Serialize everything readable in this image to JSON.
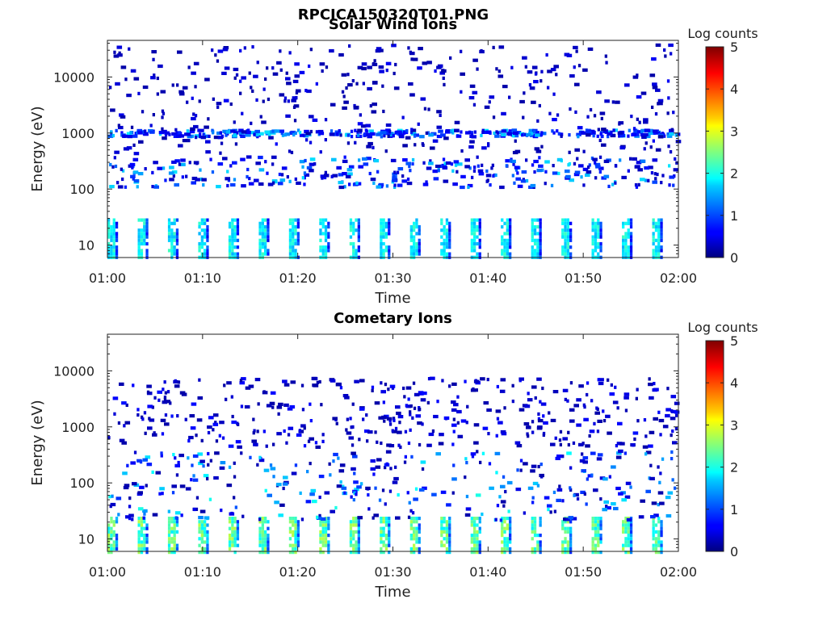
{
  "figure_title": "RPCICA150320T01.PNG",
  "chart_data": [
    {
      "type": "heatmap",
      "title": "Solar Wind Ions",
      "xlabel": "Time",
      "ylabel": "Energy (eV)",
      "x_range": [
        "01:00",
        "02:00"
      ],
      "x_ticks": [
        "01:00",
        "01:10",
        "01:20",
        "01:30",
        "01:40",
        "01:50",
        "02:00"
      ],
      "y_scale": "log",
      "ylim": [
        6,
        45000
      ],
      "y_ticks": [
        10,
        100,
        1000,
        10000
      ],
      "y_tick_labels": [
        "10",
        "100",
        "1000",
        "10000"
      ],
      "colorbar": {
        "label": "Log counts",
        "range": [
          0,
          5
        ],
        "ticks": [
          "0",
          "1",
          "2",
          "3",
          "4",
          "5"
        ],
        "colormap": "jet"
      },
      "features": [
        {
          "energy_range_ev": [
            6,
            30
          ],
          "log_counts": [
            1.5,
            2.2
          ],
          "description": "periodic sweeps about every 3.2 minutes"
        },
        {
          "energy_range_ev": [
            100,
            400
          ],
          "log_counts": [
            0.3,
            1.8
          ]
        },
        {
          "energy_range_ev": [
            800,
            1200
          ],
          "log_counts": [
            0.5,
            1.8
          ]
        },
        {
          "energy_range_ev": [
            400,
            40000
          ],
          "log_counts": [
            0.2,
            0.6
          ],
          "description": "sparse background"
        }
      ]
    },
    {
      "type": "heatmap",
      "title": "Cometary Ions",
      "xlabel": "Time",
      "ylabel": "Energy (eV)",
      "x_range": [
        "01:00",
        "02:00"
      ],
      "x_ticks": [
        "01:00",
        "01:10",
        "01:20",
        "01:30",
        "01:40",
        "01:50",
        "02:00"
      ],
      "y_scale": "log",
      "ylim": [
        6,
        45000
      ],
      "y_ticks": [
        10,
        100,
        1000,
        10000
      ],
      "y_tick_labels": [
        "10",
        "100",
        "1000",
        "10000"
      ],
      "colorbar": {
        "label": "Log counts",
        "range": [
          0,
          5
        ],
        "ticks": [
          "0",
          "1",
          "2",
          "3",
          "4",
          "5"
        ],
        "colormap": "jet"
      },
      "features": [
        {
          "energy_range_ev": [
            6,
            25
          ],
          "log_counts": [
            1.8,
            2.8
          ],
          "description": "periodic sweeps about every 3.2 minutes"
        },
        {
          "energy_range_ev": [
            20,
            400
          ],
          "log_counts": [
            0.2,
            2.0
          ]
        },
        {
          "energy_range_ev": [
            400,
            8000
          ],
          "log_counts": [
            0.2,
            0.7
          ],
          "description": "sparse background"
        }
      ]
    }
  ]
}
